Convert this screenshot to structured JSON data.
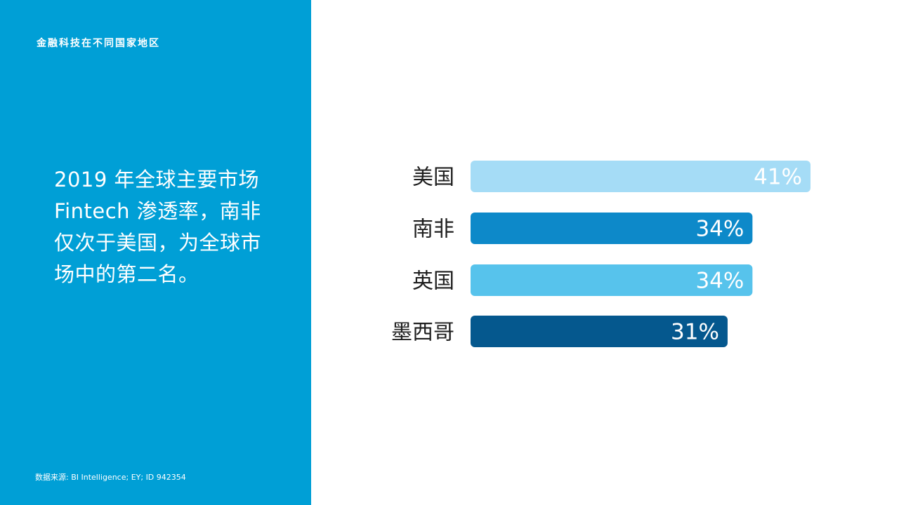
{
  "section_label": "金融科技在不同国家地区",
  "headline": "2019 年全球主要市场 Fintech 渗透率，南非仅次于美国，为全球市场中的第二名。",
  "source_note": "数据来源: BI Intelligence; EY; ID 942354",
  "colors": {
    "panel": "#009fd6",
    "bars": [
      "#a5dcf6",
      "#0d89c9",
      "#57c3ec",
      "#05588e"
    ]
  },
  "chart_data": {
    "type": "bar",
    "orientation": "horizontal",
    "categories": [
      "美国",
      "南非",
      "英国",
      "墨西哥"
    ],
    "values": [
      41,
      34,
      34,
      31
    ],
    "value_labels": [
      "41%",
      "34%",
      "34%",
      "31%"
    ],
    "unit": "%",
    "xlim": [
      0,
      41
    ],
    "title": "",
    "xlabel": "",
    "ylabel": "",
    "grid": false,
    "legend": "none"
  }
}
